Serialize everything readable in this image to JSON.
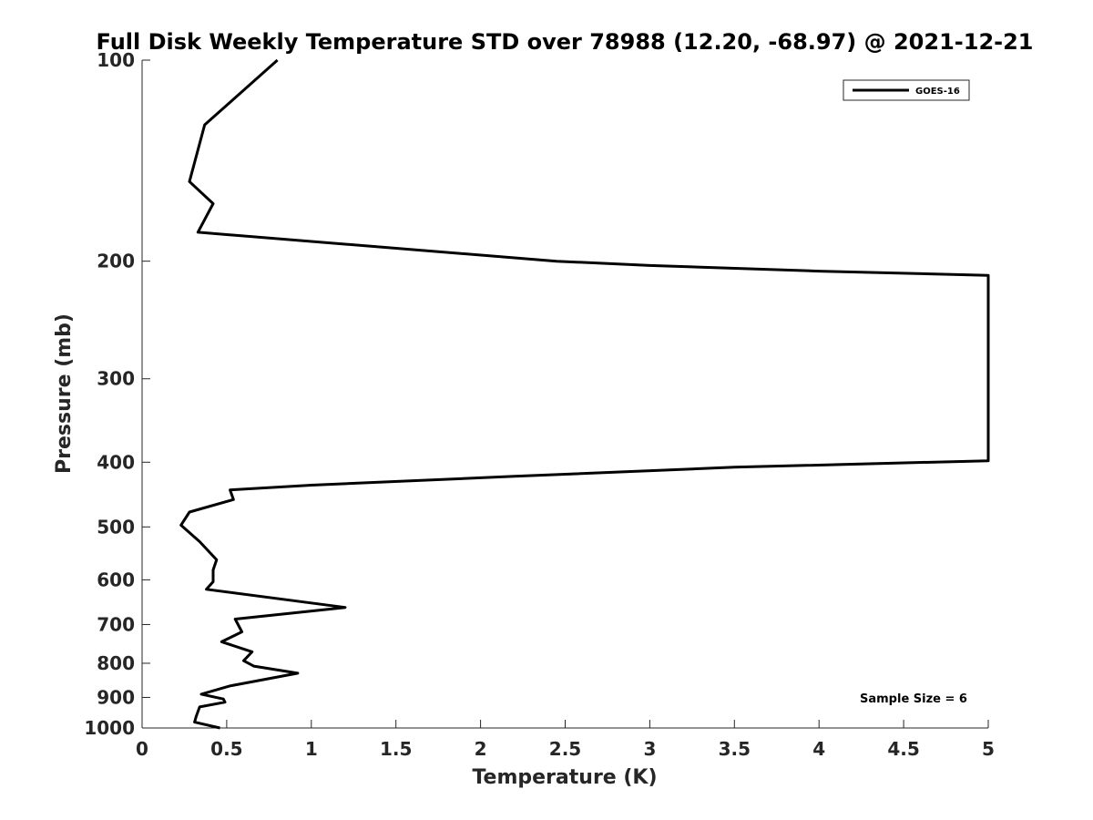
{
  "chart_data": {
    "type": "line",
    "title": "Full Disk Weekly Temperature STD over 78988 (12.20, -68.97) @ 2021-12-21",
    "xlabel": "Temperature (K)",
    "ylabel": "Pressure (mb)",
    "xlim": [
      0,
      5
    ],
    "ylim": [
      1000,
      100
    ],
    "yscale": "log",
    "yreverse": true,
    "grid": false,
    "legend_position": "top-right",
    "x_ticks": [
      "0",
      "0.5",
      "1",
      "1.5",
      "2",
      "2.5",
      "3",
      "3.5",
      "4",
      "4.5",
      "5"
    ],
    "y_ticks": [
      "100",
      "200",
      "300",
      "400",
      "500",
      "600",
      "700",
      "800",
      "900",
      "1000"
    ],
    "series": [
      {
        "name": "GOES-16",
        "color": "#000000",
        "points": [
          [
            0.8,
            100
          ],
          [
            0.37,
            125
          ],
          [
            0.28,
            152
          ],
          [
            0.42,
            164
          ],
          [
            0.33,
            181
          ],
          [
            2.45,
            200
          ],
          [
            3.0,
            203
          ],
          [
            4.0,
            207
          ],
          [
            5.0,
            210
          ],
          [
            5.0,
            398
          ],
          [
            3.5,
            407
          ],
          [
            2.2,
            420
          ],
          [
            1.0,
            433
          ],
          [
            0.52,
            440
          ],
          [
            0.54,
            455
          ],
          [
            0.28,
            475
          ],
          [
            0.23,
            497
          ],
          [
            0.34,
            526
          ],
          [
            0.44,
            560
          ],
          [
            0.42,
            580
          ],
          [
            0.42,
            604
          ],
          [
            0.38,
            620
          ],
          [
            1.2,
            660
          ],
          [
            0.55,
            687
          ],
          [
            0.59,
            718
          ],
          [
            0.47,
            743
          ],
          [
            0.65,
            769
          ],
          [
            0.6,
            793
          ],
          [
            0.66,
            808
          ],
          [
            0.92,
            828
          ],
          [
            0.52,
            865
          ],
          [
            0.35,
            890
          ],
          [
            0.48,
            905
          ],
          [
            0.49,
            915
          ],
          [
            0.34,
            930
          ],
          [
            0.32,
            960
          ],
          [
            0.31,
            980
          ],
          [
            0.46,
            1000
          ]
        ]
      }
    ],
    "annotations": [
      {
        "text": "Sample Size = 6"
      }
    ]
  }
}
